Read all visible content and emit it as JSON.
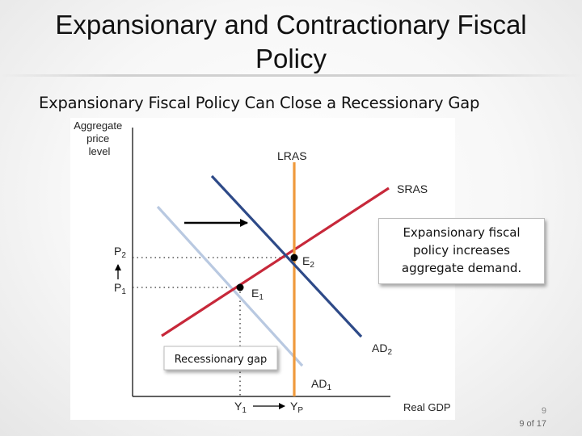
{
  "slide": {
    "title": "Expansionary and Contractionary Fiscal Policy",
    "subtitle": "Expansionary Fiscal Policy Can Close a Recessionary Gap",
    "page_number": "9",
    "page_of": "9 of 17"
  },
  "diagram": {
    "y_axis_label": [
      "Aggregate",
      "price",
      "level"
    ],
    "x_axis_label": "Real GDP",
    "curves": {
      "lras": "LRAS",
      "sras": "SRAS",
      "ad1": "AD",
      "ad1_sub": "1",
      "ad2": "AD",
      "ad2_sub": "2"
    },
    "points": {
      "e1": "E",
      "e1_sub": "1",
      "e2": "E",
      "e2_sub": "2"
    },
    "price_levels": {
      "p1": "P",
      "p1_sub": "1",
      "p2": "P",
      "p2_sub": "2"
    },
    "output_levels": {
      "y1": "Y",
      "y1_sub": "1",
      "yp": "Y",
      "yp_sub": "P"
    },
    "callout": [
      "Expansionary fiscal",
      "policy increases",
      "aggregate demand."
    ],
    "gap_label": "Recessionary gap",
    "colors": {
      "lras": "#ef9a3c",
      "sras": "#c7283a",
      "ad1": "#b9c9e1",
      "ad2": "#2e4a88",
      "callout_fill": "#ffffff",
      "gap_fill": "#ffffff"
    }
  }
}
